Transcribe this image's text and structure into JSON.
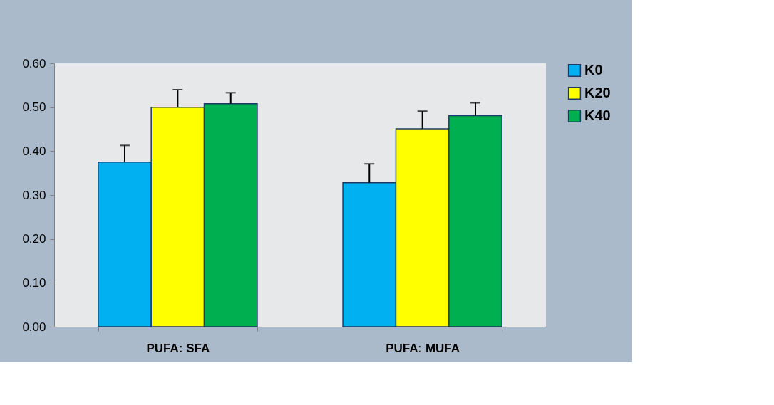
{
  "chart_data": {
    "type": "bar",
    "categories": [
      "PUFA: SFA",
      "PUFA: MUFA"
    ],
    "series": [
      {
        "name": "K0",
        "color": "#00b0f0",
        "values": [
          0.375,
          0.328
        ],
        "errors": [
          [
            0.375,
            0.413
          ],
          [
            0.328,
            0.371
          ]
        ]
      },
      {
        "name": "K20",
        "color": "#ffff00",
        "values": [
          0.5,
          0.451
        ],
        "errors": [
          [
            0.5,
            0.54
          ],
          [
            0.451,
            0.491
          ]
        ]
      },
      {
        "name": "K40",
        "color": "#00b050",
        "values": [
          0.508,
          0.481
        ],
        "errors": [
          [
            0.508,
            0.533
          ],
          [
            0.481,
            0.51
          ]
        ]
      }
    ],
    "ylim": [
      0,
      0.6
    ],
    "yticks": [
      {
        "value": 0,
        "label": "0.00"
      },
      {
        "value": 0.1,
        "label": "0.10"
      },
      {
        "value": 0.2,
        "label": "0.20"
      },
      {
        "value": 0.3,
        "label": "0.30"
      },
      {
        "value": 0.4,
        "label": "0.40"
      },
      {
        "value": 0.5,
        "label": "0.50"
      },
      {
        "value": 0.6,
        "label": "0.60"
      }
    ],
    "grid": false,
    "legend": "right"
  }
}
